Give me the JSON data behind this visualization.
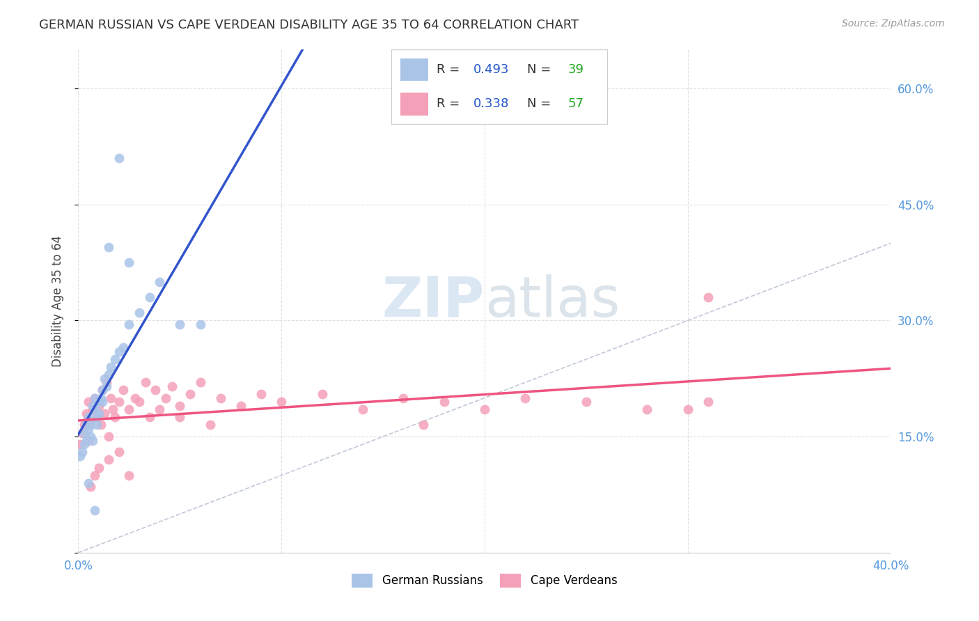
{
  "title": "GERMAN RUSSIAN VS CAPE VERDEAN DISABILITY AGE 35 TO 64 CORRELATION CHART",
  "source": "Source: ZipAtlas.com",
  "ylabel": "Disability Age 35 to 64",
  "xlim": [
    0.0,
    0.4
  ],
  "ylim": [
    0.0,
    0.65
  ],
  "german_russian_R": 0.493,
  "german_russian_N": 39,
  "cape_verdean_R": 0.338,
  "cape_verdean_N": 57,
  "german_russian_color": "#aac4e8",
  "cape_verdean_color": "#f4a0b8",
  "german_russian_line_color": "#3355cc",
  "cape_verdean_line_color": "#ee5580",
  "diagonal_color": "#c0c8d8",
  "watermark_color": "#d0dcec",
  "background_color": "#ffffff",
  "grid_color": "#e0e0e0",
  "legend_R_color": "#2255cc",
  "legend_N_color": "#22aa22",
  "tick_color": "#5599dd",
  "gr_x": [
    0.001,
    0.002,
    0.003,
    0.003,
    0.004,
    0.004,
    0.005,
    0.005,
    0.006,
    0.006,
    0.007,
    0.007,
    0.008,
    0.008,
    0.009,
    0.009,
    0.01,
    0.01,
    0.011,
    0.012,
    0.012,
    0.013,
    0.014,
    0.015,
    0.016,
    0.018,
    0.02,
    0.022,
    0.025,
    0.03,
    0.035,
    0.04,
    0.05,
    0.06,
    0.005,
    0.015,
    0.02,
    0.025,
    0.008
  ],
  "gr_y": [
    0.125,
    0.13,
    0.14,
    0.155,
    0.17,
    0.145,
    0.16,
    0.175,
    0.165,
    0.15,
    0.19,
    0.145,
    0.185,
    0.2,
    0.175,
    0.165,
    0.195,
    0.18,
    0.2,
    0.21,
    0.195,
    0.225,
    0.215,
    0.23,
    0.24,
    0.25,
    0.26,
    0.265,
    0.295,
    0.31,
    0.33,
    0.35,
    0.295,
    0.295,
    0.09,
    0.395,
    0.51,
    0.375,
    0.055
  ],
  "cv_x": [
    0.001,
    0.002,
    0.003,
    0.004,
    0.005,
    0.005,
    0.006,
    0.007,
    0.008,
    0.009,
    0.01,
    0.011,
    0.012,
    0.013,
    0.014,
    0.015,
    0.016,
    0.017,
    0.018,
    0.02,
    0.022,
    0.025,
    0.028,
    0.03,
    0.033,
    0.035,
    0.038,
    0.04,
    0.043,
    0.046,
    0.05,
    0.055,
    0.06,
    0.07,
    0.08,
    0.09,
    0.1,
    0.12,
    0.14,
    0.16,
    0.18,
    0.2,
    0.22,
    0.25,
    0.28,
    0.31,
    0.006,
    0.008,
    0.01,
    0.015,
    0.02,
    0.025,
    0.31,
    0.3,
    0.05,
    0.065,
    0.17
  ],
  "cv_y": [
    0.14,
    0.155,
    0.165,
    0.18,
    0.145,
    0.195,
    0.17,
    0.185,
    0.2,
    0.175,
    0.19,
    0.165,
    0.21,
    0.18,
    0.22,
    0.15,
    0.2,
    0.185,
    0.175,
    0.195,
    0.21,
    0.185,
    0.2,
    0.195,
    0.22,
    0.175,
    0.21,
    0.185,
    0.2,
    0.215,
    0.19,
    0.205,
    0.22,
    0.2,
    0.19,
    0.205,
    0.195,
    0.205,
    0.185,
    0.2,
    0.195,
    0.185,
    0.2,
    0.195,
    0.185,
    0.195,
    0.085,
    0.1,
    0.11,
    0.12,
    0.13,
    0.1,
    0.33,
    0.185,
    0.175,
    0.165,
    0.165
  ]
}
